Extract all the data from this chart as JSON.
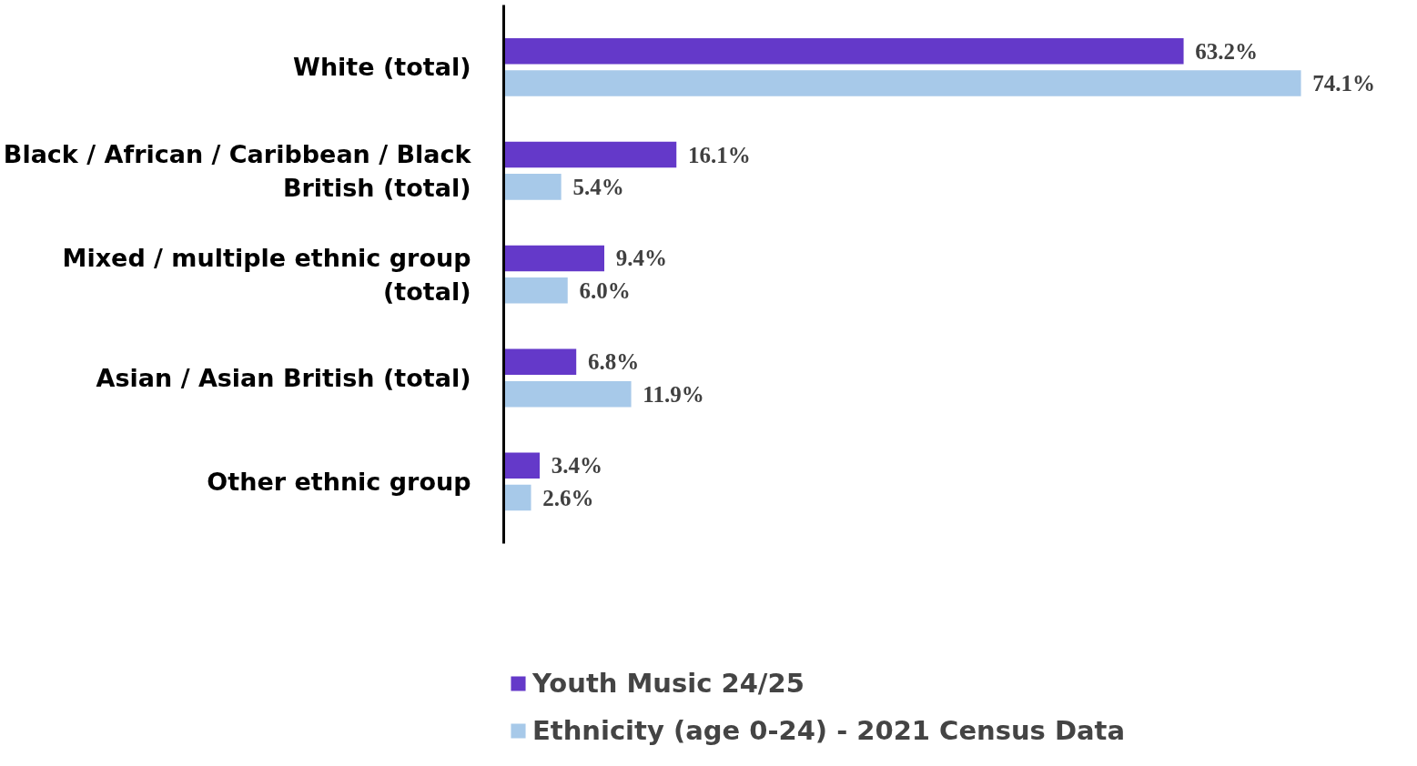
{
  "chart_data": {
    "type": "bar",
    "orientation": "horizontal",
    "categories": [
      "White (total)",
      "Black / African / Caribbean / Black British (total)",
      "Mixed / multiple ethnic group (total)",
      "Asian / Asian British (total)",
      "Other ethnic group"
    ],
    "series": [
      {
        "name": "Youth Music 24/25",
        "color": "#6439c9",
        "values": [
          63.2,
          16.1,
          9.4,
          6.8,
          3.4
        ],
        "value_labels": [
          "63.2%",
          "16.1%",
          "9.4%",
          "6.8%",
          "3.4%"
        ]
      },
      {
        "name": "Ethnicity (age 0-24) - 2021 Census Data",
        "color": "#a7c9e9",
        "values": [
          74.1,
          5.4,
          6.0,
          11.9,
          2.6
        ],
        "value_labels": [
          "74.1%",
          "5.4%",
          "6.0%",
          "11.9%",
          "2.6%"
        ]
      }
    ],
    "legend": "bottom"
  }
}
